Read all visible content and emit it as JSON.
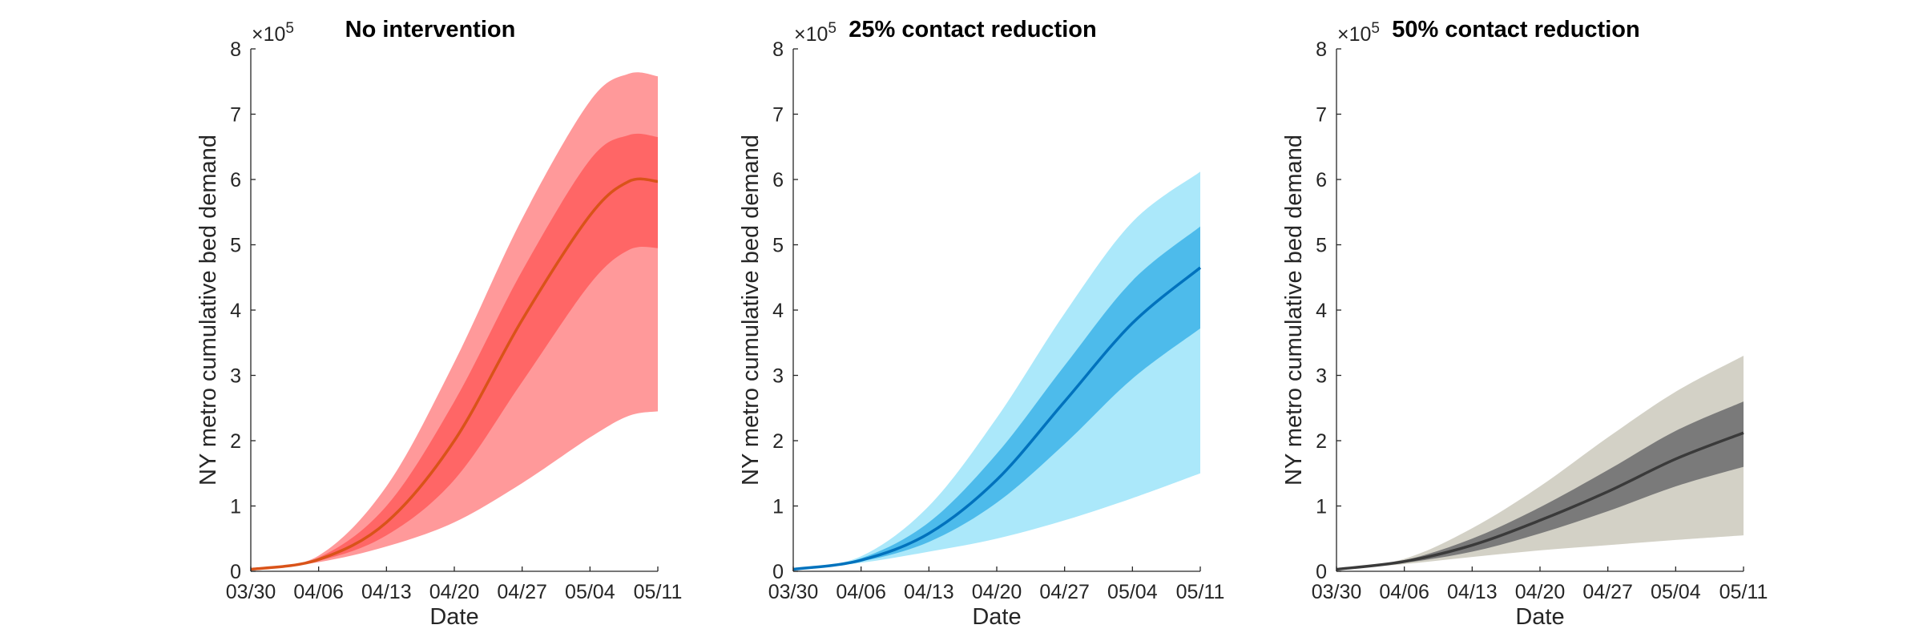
{
  "figure": {
    "panel_count": 3
  },
  "chart_data": [
    {
      "type": "area",
      "title": "No intervention",
      "xlabel": "Date",
      "ylabel": "NY metro cumulative bed demand",
      "y_exponent_label": "×10",
      "y_exponent_power": "5",
      "y_scale_factor": 100000,
      "ylim": [
        0,
        8
      ],
      "yticks": [
        "0",
        "1",
        "2",
        "3",
        "4",
        "5",
        "6",
        "7",
        "8"
      ],
      "xticks": [
        "03/30",
        "04/06",
        "04/13",
        "04/20",
        "04/27",
        "05/04",
        "05/11"
      ],
      "xlim": [
        "2020-03-30",
        "2020-05-11"
      ],
      "grid": false,
      "colors": {
        "outer_band": "#ff999a",
        "inner_band": "#ff6666",
        "median_line": "#d95319"
      },
      "x": [
        "2020-03-30",
        "2020-04-06",
        "2020-04-13",
        "2020-04-20",
        "2020-04-27",
        "2020-05-04",
        "2020-05-08",
        "2020-05-11"
      ],
      "series": [
        {
          "role": "median_line",
          "values": [
            0.03,
            0.18,
            0.75,
            2.0,
            3.85,
            5.45,
            5.97,
            5.97
          ]
        },
        {
          "role": "inner_band_upper",
          "values": [
            0.03,
            0.21,
            1.0,
            2.6,
            4.6,
            6.3,
            6.68,
            6.65
          ]
        },
        {
          "role": "inner_band_lower",
          "values": [
            0.03,
            0.16,
            0.55,
            1.4,
            2.9,
            4.4,
            4.92,
            4.95
          ]
        },
        {
          "role": "outer_band_upper",
          "values": [
            0.03,
            0.24,
            1.3,
            3.2,
            5.4,
            7.2,
            7.62,
            7.58
          ]
        },
        {
          "role": "outer_band_lower",
          "values": [
            0.03,
            0.14,
            0.38,
            0.75,
            1.35,
            2.05,
            2.38,
            2.45
          ]
        }
      ]
    },
    {
      "type": "area",
      "title": "25% contact reduction",
      "xlabel": "Date",
      "ylabel": "NY metro cumulative bed demand",
      "y_exponent_label": "×10",
      "y_exponent_power": "5",
      "y_scale_factor": 100000,
      "ylim": [
        0,
        8
      ],
      "yticks": [
        "0",
        "1",
        "2",
        "3",
        "4",
        "5",
        "6",
        "7",
        "8"
      ],
      "xticks": [
        "03/30",
        "04/06",
        "04/13",
        "04/20",
        "04/27",
        "05/04",
        "05/11"
      ],
      "xlim": [
        "2020-03-30",
        "2020-05-11"
      ],
      "grid": false,
      "colors": {
        "outer_band": "#abe8fa",
        "inner_band": "#4dbbeb",
        "median_line": "#0072bd"
      },
      "x": [
        "2020-03-30",
        "2020-04-06",
        "2020-04-13",
        "2020-04-20",
        "2020-04-27",
        "2020-05-04",
        "2020-05-11"
      ],
      "series": [
        {
          "role": "median_line",
          "values": [
            0.03,
            0.17,
            0.58,
            1.4,
            2.6,
            3.8,
            4.65
          ]
        },
        {
          "role": "inner_band_upper",
          "values": [
            0.03,
            0.2,
            0.75,
            1.8,
            3.15,
            4.45,
            5.28
          ]
        },
        {
          "role": "inner_band_lower",
          "values": [
            0.03,
            0.15,
            0.45,
            1.05,
            1.95,
            2.95,
            3.72
          ]
        },
        {
          "role": "outer_band_upper",
          "values": [
            0.03,
            0.23,
            1.0,
            2.35,
            3.95,
            5.35,
            6.12
          ]
        },
        {
          "role": "outer_band_lower",
          "values": [
            0.03,
            0.13,
            0.3,
            0.5,
            0.78,
            1.12,
            1.5
          ]
        }
      ]
    },
    {
      "type": "area",
      "title": "50% contact reduction",
      "xlabel": "Date",
      "ylabel": "NY metro cumulative bed demand",
      "y_exponent_label": "×10",
      "y_exponent_power": "5",
      "y_scale_factor": 100000,
      "ylim": [
        0,
        8
      ],
      "yticks": [
        "0",
        "1",
        "2",
        "3",
        "4",
        "5",
        "6",
        "7",
        "8"
      ],
      "xticks": [
        "03/30",
        "04/06",
        "04/13",
        "04/20",
        "04/27",
        "05/04",
        "05/11"
      ],
      "xlim": [
        "2020-03-30",
        "2020-05-11"
      ],
      "grid": false,
      "colors": {
        "outer_band": "#d3d1c6",
        "inner_band": "#7a7a7a",
        "median_line": "#3a3a3a"
      },
      "x": [
        "2020-03-30",
        "2020-04-06",
        "2020-04-13",
        "2020-04-20",
        "2020-04-27",
        "2020-05-04",
        "2020-05-11"
      ],
      "series": [
        {
          "role": "median_line",
          "values": [
            0.03,
            0.15,
            0.4,
            0.78,
            1.22,
            1.72,
            2.12
          ]
        },
        {
          "role": "inner_band_upper",
          "values": [
            0.03,
            0.17,
            0.5,
            0.98,
            1.55,
            2.15,
            2.6
          ]
        },
        {
          "role": "inner_band_lower",
          "values": [
            0.03,
            0.13,
            0.3,
            0.58,
            0.92,
            1.3,
            1.6
          ]
        },
        {
          "role": "outer_band_upper",
          "values": [
            0.03,
            0.19,
            0.66,
            1.3,
            2.05,
            2.75,
            3.3
          ]
        },
        {
          "role": "outer_band_lower",
          "values": [
            0.03,
            0.11,
            0.22,
            0.32,
            0.4,
            0.48,
            0.55
          ]
        }
      ]
    }
  ]
}
